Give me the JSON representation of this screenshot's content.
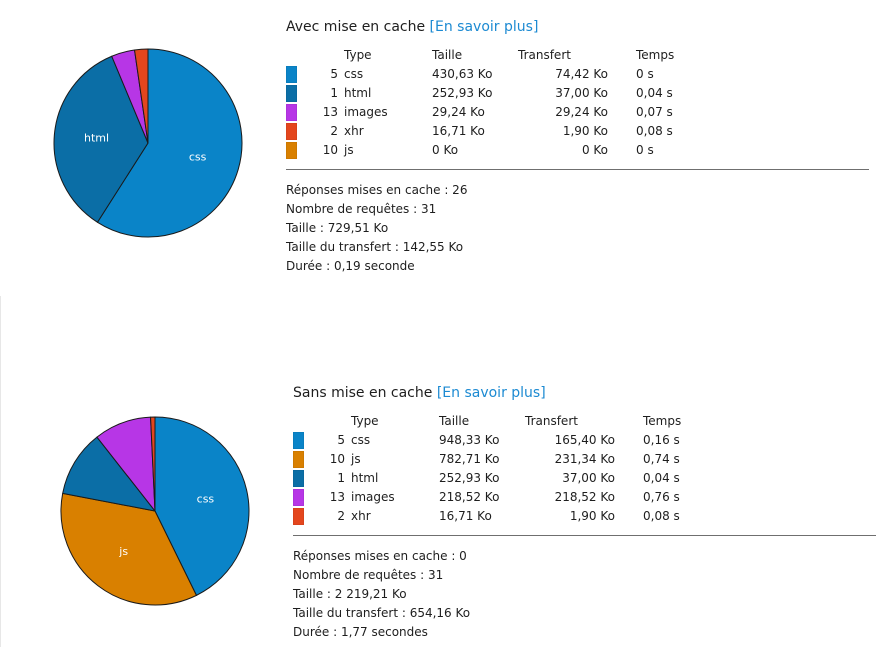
{
  "cached": {
    "heading": "Avec mise en cache",
    "learn_more": "[En savoir plus]",
    "table": {
      "headers": {
        "type": "Type",
        "size": "Taille",
        "transfer": "Transfert",
        "time": "Temps"
      },
      "rows": [
        {
          "color": "#0a84c8",
          "count": "5",
          "type": "css",
          "size": "430,63 Ko",
          "transfer": "74,42 Ko",
          "time": "0 s"
        },
        {
          "color": "#0b6ea6",
          "count": "1",
          "type": "html",
          "size": "252,93 Ko",
          "transfer": "37,00 Ko",
          "time": "0,04 s"
        },
        {
          "color": "#b736e6",
          "count": "13",
          "type": "images",
          "size": "29,24 Ko",
          "transfer": "29,24 Ko",
          "time": "0,07 s"
        },
        {
          "color": "#e4461d",
          "count": "2",
          "type": "xhr",
          "size": "16,71 Ko",
          "transfer": "1,90 Ko",
          "time": "0,08 s"
        },
        {
          "color": "#d98000",
          "count": "10",
          "type": "js",
          "size": "0 Ko",
          "transfer": "0 Ko",
          "time": "0 s"
        }
      ]
    },
    "summary": [
      "Réponses mises en cache : 26",
      "Nombre de requêtes : 31",
      "Taille : 729,51 Ko",
      "Taille du transfert : 142,55 Ko",
      "Durée : 0,19 seconde"
    ],
    "chart_data": {
      "type": "pie",
      "unit": "Ko",
      "slices": [
        {
          "label": "css",
          "value": 430.63,
          "color": "#0a84c8",
          "text": "css"
        },
        {
          "label": "html",
          "value": 252.93,
          "color": "#0b6ea6",
          "text": "html"
        },
        {
          "label": "images",
          "value": 29.24,
          "color": "#b736e6",
          "text": ""
        },
        {
          "label": "xhr",
          "value": 16.71,
          "color": "#e4461d",
          "text": ""
        },
        {
          "label": "js",
          "value": 0,
          "color": "#d98000",
          "text": ""
        }
      ]
    }
  },
  "uncached": {
    "heading": "Sans mise en cache",
    "learn_more": "[En savoir plus]",
    "table": {
      "headers": {
        "type": "Type",
        "size": "Taille",
        "transfer": "Transfert",
        "time": "Temps"
      },
      "rows": [
        {
          "color": "#0a84c8",
          "count": "5",
          "type": "css",
          "size": "948,33 Ko",
          "transfer": "165,40 Ko",
          "time": "0,16 s"
        },
        {
          "color": "#d98000",
          "count": "10",
          "type": "js",
          "size": "782,71 Ko",
          "transfer": "231,34 Ko",
          "time": "0,74 s"
        },
        {
          "color": "#0b6ea6",
          "count": "1",
          "type": "html",
          "size": "252,93 Ko",
          "transfer": "37,00 Ko",
          "time": "0,04 s"
        },
        {
          "color": "#b736e6",
          "count": "13",
          "type": "images",
          "size": "218,52 Ko",
          "transfer": "218,52 Ko",
          "time": "0,76 s"
        },
        {
          "color": "#e4461d",
          "count": "2",
          "type": "xhr",
          "size": "16,71 Ko",
          "transfer": "1,90 Ko",
          "time": "0,08 s"
        }
      ]
    },
    "summary": [
      "Réponses mises en cache : 0",
      "Nombre de requêtes : 31",
      "Taille : 2 219,21 Ko",
      "Taille du transfert : 654,16 Ko",
      "Durée : 1,77 secondes"
    ],
    "chart_data": {
      "type": "pie",
      "unit": "Ko",
      "slices": [
        {
          "label": "css",
          "value": 948.33,
          "color": "#0a84c8",
          "text": "css"
        },
        {
          "label": "js",
          "value": 782.71,
          "color": "#d98000",
          "text": "js"
        },
        {
          "label": "html",
          "value": 252.93,
          "color": "#0b6ea6",
          "text": ""
        },
        {
          "label": "images",
          "value": 218.52,
          "color": "#b736e6",
          "text": ""
        },
        {
          "label": "xhr",
          "value": 16.71,
          "color": "#e4461d",
          "text": ""
        }
      ]
    }
  }
}
